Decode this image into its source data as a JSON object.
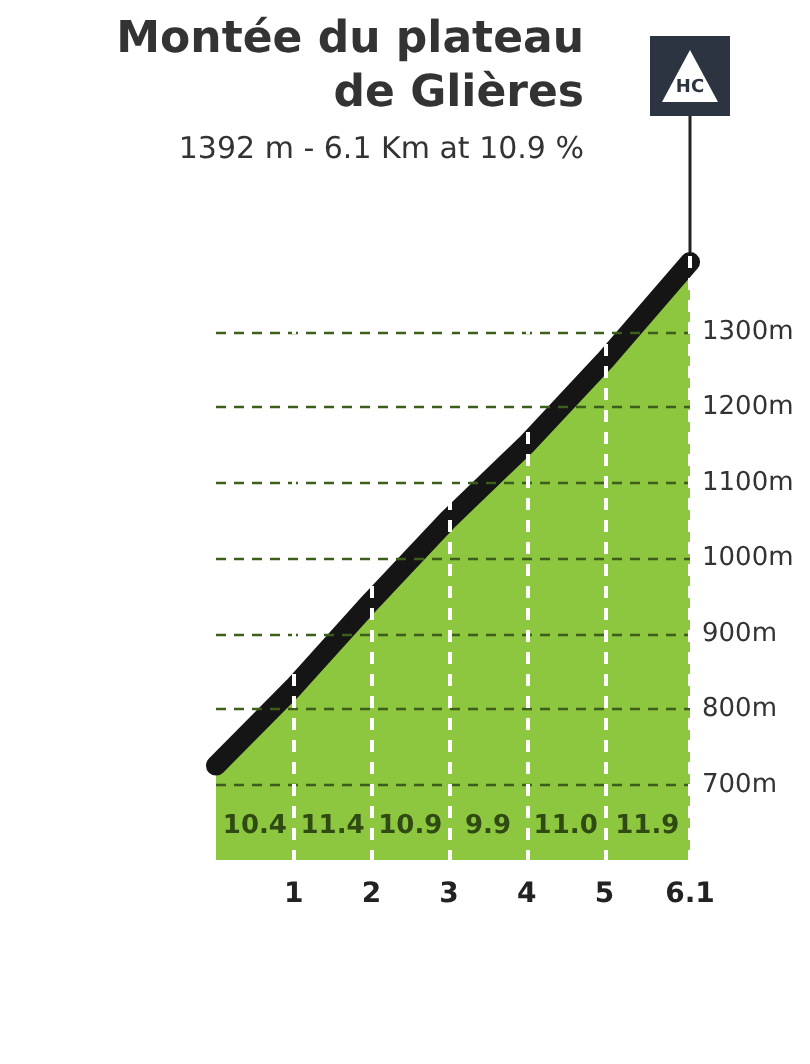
{
  "chart_data": {
    "type": "area",
    "title": "Montée du plateau de Glières",
    "subtitle": "1392 m - 6.1 Km at 10.9 %",
    "x": [
      0,
      1,
      2,
      3,
      4,
      5,
      6.1
    ],
    "values": [
      725,
      829,
      943,
      1052,
      1151,
      1261,
      1392
    ],
    "color": "#8dc63f",
    "xlim": [
      0,
      6.1
    ],
    "xticks": [
      1,
      2,
      3,
      4,
      5,
      6.1
    ],
    "ylim": [
      600,
      1400
    ],
    "yticks": [
      {
        "value": 700,
        "label": "700m"
      },
      {
        "value": 800,
        "label": "800m"
      },
      {
        "value": 900,
        "label": "900m"
      },
      {
        "value": 1000,
        "label": "1000m"
      },
      {
        "value": 1100,
        "label": "1100m"
      },
      {
        "value": 1200,
        "label": "1200m"
      },
      {
        "value": 1300,
        "label": "1300m"
      }
    ],
    "grid": true,
    "annotations": [
      "10.4",
      "11.4",
      "10.9",
      "9.9",
      "11.0",
      "11.9",
      {
        "text": "HC",
        "x": 6.1,
        "y": 1392
      }
    ]
  }
}
